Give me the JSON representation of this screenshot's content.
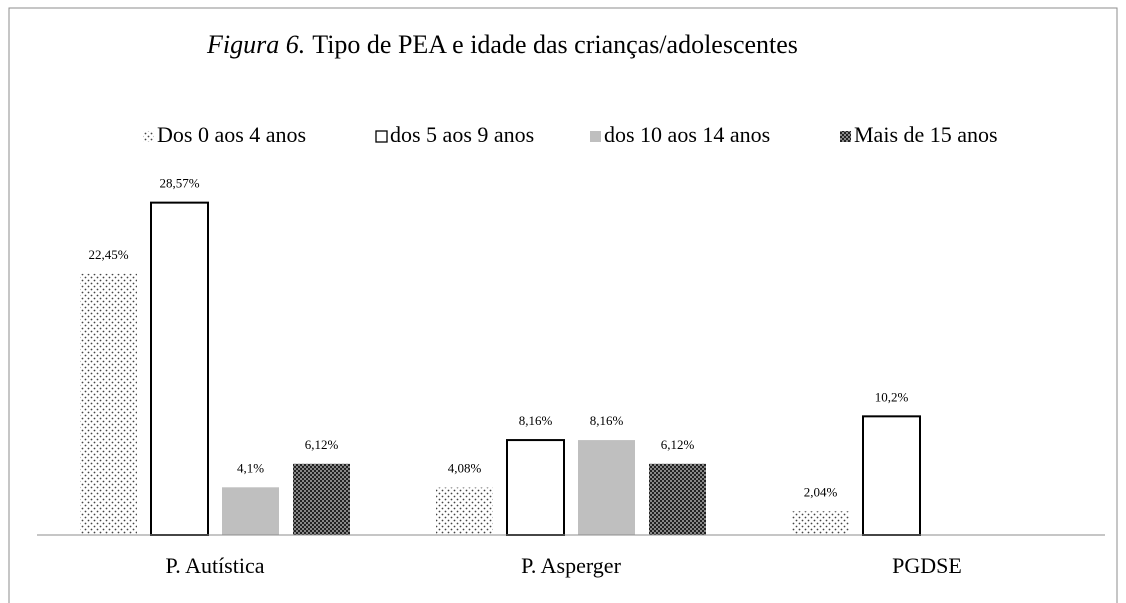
{
  "chart_data": {
    "type": "bar",
    "title_label": "Figura 6.",
    "title": "Tipo de PEA e idade das crianças/adolescentes",
    "categories": [
      "P. Autística",
      "P. Asperger",
      "PGDSE"
    ],
    "series": [
      {
        "name": "Dos 0 aos 4 anos",
        "color": "#000000",
        "pattern": "dots",
        "values": [
          22.45,
          4.08,
          2.04
        ],
        "value_labels": [
          "22,45%",
          "4,08%",
          "2,04%"
        ]
      },
      {
        "name": "dos 5 aos 9 anos",
        "color": "#ffffff",
        "pattern": "outline",
        "values": [
          28.57,
          8.16,
          10.2
        ],
        "value_labels": [
          "28,57%",
          "8,16%",
          "10,2%"
        ]
      },
      {
        "name": "dos 10 aos 14 anos",
        "color": "#bfbfbf",
        "pattern": "solid",
        "values": [
          4.1,
          8.16,
          null
        ],
        "value_labels": [
          "4,1%",
          "8,16%",
          null
        ]
      },
      {
        "name": "Mais de 15 anos",
        "color": "#555555",
        "pattern": "checker",
        "values": [
          6.12,
          6.12,
          null
        ],
        "value_labels": [
          "6,12%",
          "6,12%",
          null
        ]
      }
    ],
    "ylim": [
      0,
      30
    ],
    "legend": "top"
  }
}
